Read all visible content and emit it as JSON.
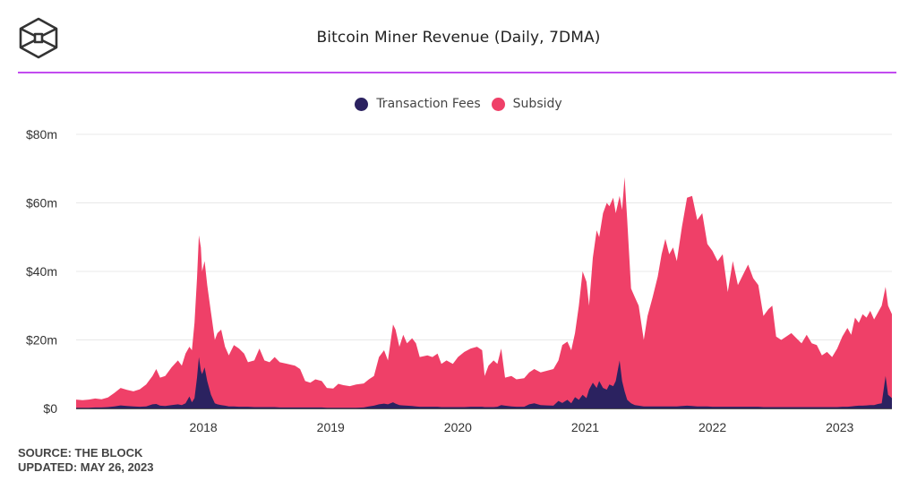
{
  "header": {
    "title": "Bitcoin Miner Revenue (Daily, 7DMA)",
    "logo": "the-block-cube-logo"
  },
  "colors": {
    "accent_rule": "#c24bf0",
    "fees": "#2b2260",
    "subsidy": "#ef4068",
    "grid": "#e8e8e8"
  },
  "footer": {
    "source": "SOURCE: THE BLOCK",
    "updated": "UPDATED: MAY 26, 2023"
  },
  "chart_data": {
    "type": "area",
    "stacked": true,
    "title": "Bitcoin Miner Revenue (Daily, 7DMA)",
    "xlabel": "",
    "ylabel": "",
    "legend": [
      {
        "name": "Transaction Fees",
        "color": "#2b2260"
      },
      {
        "name": "Subsidy",
        "color": "#ef4068"
      }
    ],
    "legend_position": "top-center",
    "grid": true,
    "ylim": [
      0,
      80
    ],
    "yticks": [
      {
        "value": 0,
        "label": "$0"
      },
      {
        "value": 20,
        "label": "$20m"
      },
      {
        "value": 40,
        "label": "$40m"
      },
      {
        "value": 60,
        "label": "$60m"
      },
      {
        "value": 80,
        "label": "$80m"
      }
    ],
    "xlim": [
      2017.0,
      2023.41
    ],
    "xticks": [
      {
        "value": 2018,
        "label": "2018"
      },
      {
        "value": 2019,
        "label": "2019"
      },
      {
        "value": 2020,
        "label": "2020"
      },
      {
        "value": 2021,
        "label": "2021"
      },
      {
        "value": 2022,
        "label": "2022"
      },
      {
        "value": 2023,
        "label": "2023"
      }
    ],
    "units": "USD millions",
    "columns": [
      "year",
      "total",
      "fees"
    ],
    "points": [
      [
        2017.0,
        2.6,
        0.2
      ],
      [
        2017.05,
        2.4,
        0.2
      ],
      [
        2017.1,
        2.6,
        0.2
      ],
      [
        2017.15,
        2.9,
        0.3
      ],
      [
        2017.2,
        2.7,
        0.3
      ],
      [
        2017.25,
        3.2,
        0.4
      ],
      [
        2017.3,
        4.5,
        0.6
      ],
      [
        2017.35,
        6.0,
        0.9
      ],
      [
        2017.4,
        5.4,
        0.7
      ],
      [
        2017.45,
        5.0,
        0.6
      ],
      [
        2017.5,
        5.6,
        0.5
      ],
      [
        2017.55,
        7.0,
        0.6
      ],
      [
        2017.6,
        9.5,
        1.2
      ],
      [
        2017.63,
        11.5,
        1.3
      ],
      [
        2017.66,
        9.0,
        0.8
      ],
      [
        2017.7,
        9.5,
        0.7
      ],
      [
        2017.75,
        12.0,
        1.0
      ],
      [
        2017.8,
        14.0,
        1.2
      ],
      [
        2017.83,
        12.5,
        1.0
      ],
      [
        2017.86,
        16.0,
        1.5
      ],
      [
        2017.89,
        18.0,
        3.5
      ],
      [
        2017.91,
        17.0,
        1.8
      ],
      [
        2017.93,
        25.0,
        3.0
      ],
      [
        2017.95,
        38.0,
        9.0
      ],
      [
        2017.965,
        50.5,
        15.0
      ],
      [
        2017.98,
        47.0,
        11.0
      ],
      [
        2017.99,
        40.0,
        10.0
      ],
      [
        2018.01,
        43.0,
        12.0
      ],
      [
        2018.03,
        36.0,
        8.0
      ],
      [
        2018.06,
        28.0,
        4.0
      ],
      [
        2018.09,
        20.0,
        1.5
      ],
      [
        2018.11,
        22.0,
        1.2
      ],
      [
        2018.14,
        23.0,
        1.0
      ],
      [
        2018.17,
        18.0,
        0.8
      ],
      [
        2018.2,
        15.5,
        0.6
      ],
      [
        2018.24,
        18.5,
        0.6
      ],
      [
        2018.28,
        17.5,
        0.5
      ],
      [
        2018.32,
        16.0,
        0.5
      ],
      [
        2018.35,
        13.5,
        0.5
      ],
      [
        2018.4,
        14.0,
        0.4
      ],
      [
        2018.44,
        17.5,
        0.4
      ],
      [
        2018.48,
        14.0,
        0.4
      ],
      [
        2018.52,
        13.5,
        0.4
      ],
      [
        2018.56,
        15.0,
        0.4
      ],
      [
        2018.6,
        13.5,
        0.3
      ],
      [
        2018.66,
        13.0,
        0.3
      ],
      [
        2018.72,
        12.5,
        0.3
      ],
      [
        2018.76,
        11.5,
        0.3
      ],
      [
        2018.8,
        8.0,
        0.3
      ],
      [
        2018.84,
        7.5,
        0.3
      ],
      [
        2018.88,
        8.5,
        0.3
      ],
      [
        2018.93,
        8.0,
        0.3
      ],
      [
        2018.97,
        6.0,
        0.2
      ],
      [
        2019.02,
        5.8,
        0.2
      ],
      [
        2019.06,
        7.2,
        0.2
      ],
      [
        2019.1,
        6.8,
        0.2
      ],
      [
        2019.15,
        6.5,
        0.2
      ],
      [
        2019.2,
        7.0,
        0.2
      ],
      [
        2019.26,
        7.3,
        0.3
      ],
      [
        2019.3,
        8.5,
        0.6
      ],
      [
        2019.34,
        9.5,
        0.8
      ],
      [
        2019.38,
        15.0,
        1.2
      ],
      [
        2019.42,
        17.0,
        1.4
      ],
      [
        2019.45,
        14.0,
        1.2
      ],
      [
        2019.49,
        24.5,
        1.8
      ],
      [
        2019.51,
        23.0,
        1.4
      ],
      [
        2019.54,
        18.0,
        1.0
      ],
      [
        2019.57,
        21.5,
        0.9
      ],
      [
        2019.6,
        19.0,
        0.8
      ],
      [
        2019.64,
        20.5,
        0.7
      ],
      [
        2019.67,
        19.0,
        0.6
      ],
      [
        2019.7,
        15.0,
        0.5
      ],
      [
        2019.76,
        15.5,
        0.5
      ],
      [
        2019.8,
        15.0,
        0.5
      ],
      [
        2019.84,
        16.0,
        0.5
      ],
      [
        2019.87,
        13.0,
        0.4
      ],
      [
        2019.91,
        14.0,
        0.4
      ],
      [
        2019.96,
        13.0,
        0.4
      ],
      [
        2020.0,
        15.0,
        0.4
      ],
      [
        2020.05,
        16.5,
        0.4
      ],
      [
        2020.1,
        17.5,
        0.5
      ],
      [
        2020.15,
        18.0,
        0.5
      ],
      [
        2020.19,
        17.0,
        0.5
      ],
      [
        2020.21,
        9.5,
        0.4
      ],
      [
        2020.24,
        12.5,
        0.4
      ],
      [
        2020.28,
        14.0,
        0.4
      ],
      [
        2020.31,
        13.0,
        0.5
      ],
      [
        2020.34,
        17.5,
        1.0
      ],
      [
        2020.37,
        9.0,
        0.8
      ],
      [
        2020.42,
        9.5,
        0.6
      ],
      [
        2020.46,
        8.5,
        0.5
      ],
      [
        2020.52,
        8.8,
        0.5
      ],
      [
        2020.56,
        10.5,
        1.2
      ],
      [
        2020.6,
        11.5,
        1.5
      ],
      [
        2020.65,
        10.5,
        1.0
      ],
      [
        2020.7,
        11.0,
        0.9
      ],
      [
        2020.75,
        11.5,
        0.8
      ],
      [
        2020.79,
        14.0,
        2.2
      ],
      [
        2020.82,
        18.5,
        1.6
      ],
      [
        2020.86,
        19.5,
        2.5
      ],
      [
        2020.89,
        17.0,
        1.5
      ],
      [
        2020.92,
        22.0,
        3.3
      ],
      [
        2020.95,
        30.0,
        2.5
      ],
      [
        2020.98,
        40.0,
        4.0
      ],
      [
        2021.01,
        37.0,
        3.0
      ],
      [
        2021.03,
        30.0,
        5.5
      ],
      [
        2021.06,
        44.0,
        7.5
      ],
      [
        2021.09,
        52.0,
        6.0
      ],
      [
        2021.11,
        50.0,
        8.0
      ],
      [
        2021.14,
        57.0,
        6.0
      ],
      [
        2021.17,
        60.0,
        5.5
      ],
      [
        2021.19,
        59.0,
        7.0
      ],
      [
        2021.22,
        61.5,
        6.5
      ],
      [
        2021.24,
        57.0,
        8.0
      ],
      [
        2021.27,
        62.0,
        14.0
      ],
      [
        2021.29,
        58.0,
        8.0
      ],
      [
        2021.31,
        67.5,
        5.0
      ],
      [
        2021.33,
        55.0,
        2.5
      ],
      [
        2021.36,
        35.0,
        1.5
      ],
      [
        2021.39,
        32.5,
        1.0
      ],
      [
        2021.42,
        30.0,
        0.8
      ],
      [
        2021.46,
        20.0,
        0.6
      ],
      [
        2021.49,
        27.0,
        0.6
      ],
      [
        2021.53,
        32.5,
        0.6
      ],
      [
        2021.57,
        38.5,
        0.6
      ],
      [
        2021.6,
        45.0,
        0.6
      ],
      [
        2021.63,
        49.5,
        0.6
      ],
      [
        2021.66,
        45.0,
        0.6
      ],
      [
        2021.69,
        47.0,
        0.6
      ],
      [
        2021.72,
        43.0,
        0.6
      ],
      [
        2021.76,
        53.0,
        0.7
      ],
      [
        2021.8,
        61.5,
        0.8
      ],
      [
        2021.84,
        62.0,
        0.7
      ],
      [
        2021.88,
        55.0,
        0.6
      ],
      [
        2021.92,
        57.0,
        0.6
      ],
      [
        2021.96,
        48.0,
        0.6
      ],
      [
        2022.0,
        46.0,
        0.5
      ],
      [
        2022.04,
        43.0,
        0.5
      ],
      [
        2022.08,
        45.0,
        0.5
      ],
      [
        2022.12,
        34.0,
        0.5
      ],
      [
        2022.16,
        43.0,
        0.5
      ],
      [
        2022.2,
        36.0,
        0.5
      ],
      [
        2022.24,
        39.0,
        0.5
      ],
      [
        2022.28,
        42.0,
        0.5
      ],
      [
        2022.32,
        38.0,
        0.5
      ],
      [
        2022.36,
        36.0,
        0.5
      ],
      [
        2022.4,
        27.0,
        0.4
      ],
      [
        2022.44,
        29.0,
        0.4
      ],
      [
        2022.47,
        30.0,
        0.4
      ],
      [
        2022.5,
        21.0,
        0.4
      ],
      [
        2022.54,
        20.0,
        0.4
      ],
      [
        2022.58,
        21.0,
        0.4
      ],
      [
        2022.62,
        22.0,
        0.4
      ],
      [
        2022.66,
        20.5,
        0.4
      ],
      [
        2022.7,
        19.0,
        0.4
      ],
      [
        2022.74,
        21.5,
        0.4
      ],
      [
        2022.78,
        19.0,
        0.4
      ],
      [
        2022.82,
        18.5,
        0.4
      ],
      [
        2022.86,
        15.5,
        0.4
      ],
      [
        2022.9,
        16.5,
        0.4
      ],
      [
        2022.94,
        15.0,
        0.4
      ],
      [
        2022.98,
        17.5,
        0.4
      ],
      [
        2023.02,
        21.0,
        0.5
      ],
      [
        2023.06,
        23.5,
        0.5
      ],
      [
        2023.09,
        21.5,
        0.6
      ],
      [
        2023.12,
        26.5,
        0.7
      ],
      [
        2023.15,
        25.0,
        0.8
      ],
      [
        2023.18,
        27.5,
        0.8
      ],
      [
        2023.21,
        26.5,
        0.9
      ],
      [
        2023.24,
        28.5,
        1.0
      ],
      [
        2023.27,
        26.0,
        1.0
      ],
      [
        2023.3,
        28.0,
        1.3
      ],
      [
        2023.33,
        30.0,
        1.5
      ],
      [
        2023.36,
        35.5,
        9.5
      ],
      [
        2023.38,
        30.0,
        4.0
      ],
      [
        2023.41,
        27.5,
        3.0
      ]
    ]
  }
}
